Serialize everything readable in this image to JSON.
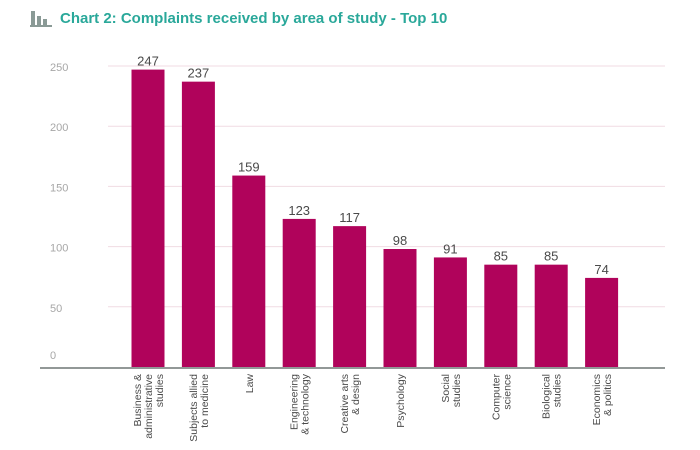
{
  "colors": {
    "bar": "#b0035b",
    "title": "#2aa89a",
    "icon": "#8a9a96",
    "grid": "#f1dbe3",
    "axis": "#6e7775",
    "tick_text": "#a7a7a7",
    "label_text": "#4a4a4a"
  },
  "icon": "bar-chart-icon",
  "chart_data": {
    "type": "bar",
    "title": "Chart 2: Complaints received by area of study - Top 10",
    "xlabel": "",
    "ylabel": "",
    "ylim": [
      0,
      250
    ],
    "yticks": [
      0,
      50,
      100,
      150,
      200,
      250
    ],
    "grid": true,
    "legend": "none",
    "categories": [
      [
        "Business &",
        "administrative",
        "studies"
      ],
      [
        "Subjects allied",
        "to medicine"
      ],
      [
        "Law"
      ],
      [
        "Engineering",
        "& technology"
      ],
      [
        "Creative arts",
        "& design"
      ],
      [
        "Psychology"
      ],
      [
        "Social",
        "studies"
      ],
      [
        "Computer",
        "science"
      ],
      [
        "Biological",
        "studies"
      ],
      [
        "Economics",
        "& politics"
      ]
    ],
    "values": [
      247,
      237,
      159,
      123,
      117,
      98,
      91,
      85,
      85,
      74
    ]
  }
}
